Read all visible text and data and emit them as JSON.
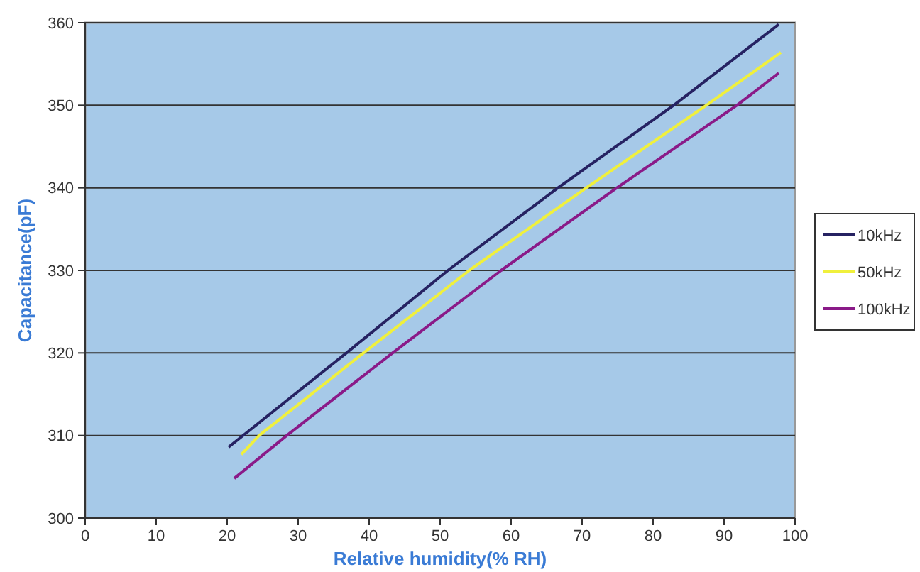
{
  "chart_data": {
    "type": "line",
    "xlabel": "Relative humidity(% RH)",
    "ylabel": "Capacitance(pF)",
    "xlim": [
      0,
      100
    ],
    "xticks": [
      0,
      10,
      20,
      30,
      40,
      50,
      60,
      70,
      80,
      90,
      100
    ],
    "ylim": [
      300,
      360
    ],
    "yticks": [
      300,
      310,
      320,
      330,
      340,
      350,
      360
    ],
    "grid": "y",
    "legend": "right",
    "marker": "none",
    "line_style": "solid",
    "series": [
      {
        "name": "10kHz",
        "color": "#262262",
        "x": [
          20.2,
          36.8,
          51.1,
          66.6,
          82.9,
          97.7
        ],
        "values": [
          308.6,
          320,
          330,
          340,
          350,
          359.8
        ]
      },
      {
        "name": "50kHz",
        "color": "#f0f03c",
        "x": [
          22,
          24.5,
          39.2,
          54.1,
          70.6,
          87.5,
          98
        ],
        "values": [
          307.7,
          310,
          320,
          330,
          340,
          350,
          356.4
        ]
      },
      {
        "name": "100kHz",
        "color": "#8a1a88",
        "x": [
          21,
          28.4,
          43.3,
          58.6,
          74.9,
          91.8,
          97.7
        ],
        "values": [
          304.8,
          310,
          320,
          330,
          340,
          350,
          353.9
        ]
      }
    ]
  }
}
